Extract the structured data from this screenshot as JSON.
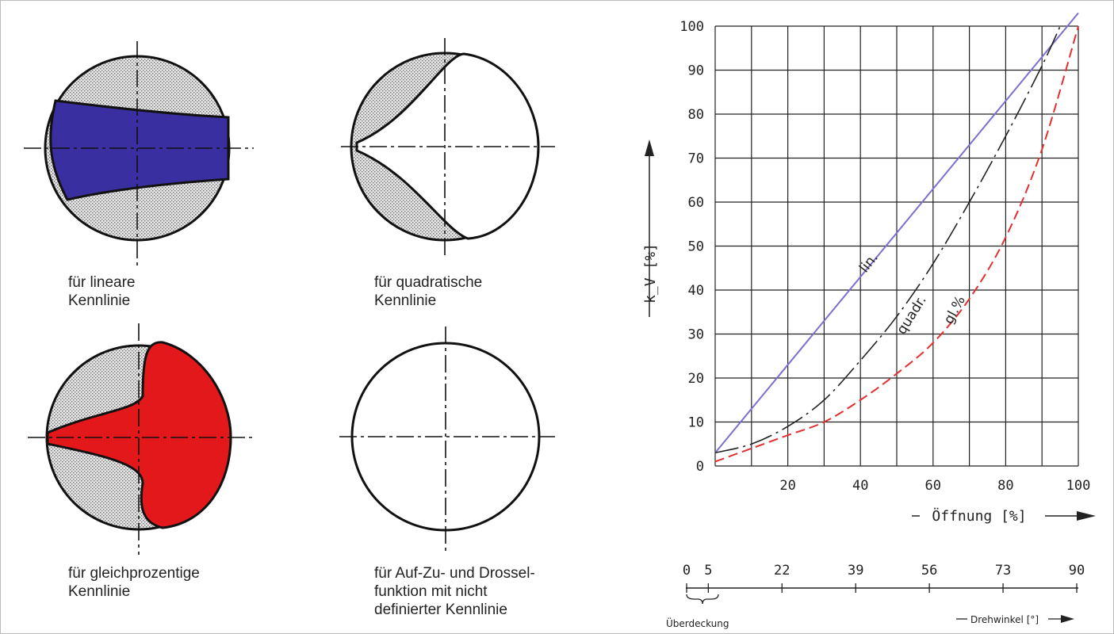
{
  "captions": {
    "linear": [
      "für lineare",
      "Kennlinie"
    ],
    "quadratic": [
      "für quadratische",
      "Kennlinie"
    ],
    "equal_percentage": [
      "für gleichprozentige",
      "Kennlinie"
    ],
    "on_off": [
      "für Auf-Zu- und Drossel-",
      "funktion mit nicht",
      "definierter Kennlinie"
    ]
  },
  "colors": {
    "linear_fill": "#3a2fa0",
    "equal_percentage_fill": "#e3181b",
    "linear_curve": "#7a70d0",
    "quadratic_curve": "#222222",
    "equal_percentage_curve": "#e23030"
  },
  "chart_data": {
    "type": "line",
    "ylabel": "k_V [%]",
    "xlabel": "Öffnung [%]",
    "xlim": [
      0,
      100
    ],
    "ylim": [
      0,
      100
    ],
    "grid": true,
    "y_ticks": [
      "0",
      "10",
      "20",
      "30",
      "40",
      "50",
      "60",
      "70",
      "80",
      "90",
      "100"
    ],
    "x_ticks": [
      "20",
      "40",
      "60",
      "80",
      "100"
    ],
    "series": [
      {
        "name": "lin.",
        "x": [
          0,
          100
        ],
        "y": [
          3,
          103
        ]
      },
      {
        "name": "quadr.",
        "x": [
          0,
          10,
          20,
          30,
          40,
          50,
          60,
          70,
          80,
          90,
          95
        ],
        "y": [
          3,
          5,
          9,
          15,
          24,
          34,
          46,
          60,
          75,
          91,
          100
        ]
      },
      {
        "name": "gl.%",
        "x": [
          0,
          10,
          20,
          30,
          40,
          50,
          60,
          70,
          80,
          90,
          100
        ],
        "y": [
          1,
          4,
          7,
          10,
          15,
          21,
          28,
          38,
          52,
          72,
          100
        ]
      }
    ],
    "secondary_axis": {
      "label": "Drehwinkel [°]",
      "ticks": [
        "0",
        "5",
        "22",
        "39",
        "56",
        "73",
        "90"
      ],
      "note": "Überdeckung"
    }
  }
}
